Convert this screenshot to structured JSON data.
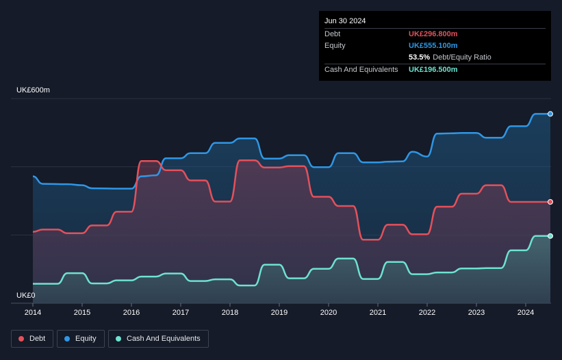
{
  "tooltip": {
    "date": "Jun 30 2024",
    "debt_label": "Debt",
    "debt_value": "UK£296.800m",
    "equity_label": "Equity",
    "equity_value": "UK£555.100m",
    "ratio_value": "53.5%",
    "ratio_label": "Debt/Equity Ratio",
    "cash_label": "Cash And Equivalents",
    "cash_value": "UK£196.500m"
  },
  "legend": {
    "debt": "Debt",
    "equity": "Equity",
    "cash": "Cash And Equivalents"
  },
  "colors": {
    "debt": "#e5505b",
    "equity": "#2f97e6",
    "cash": "#6de3d1",
    "background": "#151b28"
  },
  "chart_data": {
    "type": "area",
    "ylabel_top": "UK£600m",
    "ylabel_bottom": "UK£0",
    "ylim": [
      0,
      600
    ],
    "xlim": [
      2014.0,
      2024.5
    ],
    "x_ticks": [
      "2014",
      "2015",
      "2016",
      "2017",
      "2018",
      "2019",
      "2020",
      "2021",
      "2022",
      "2023",
      "2024"
    ],
    "grid": true,
    "series": [
      {
        "name": "Equity",
        "x": [
          2014.0,
          2014.2,
          2014.7,
          2015.0,
          2015.2,
          2015.8,
          2016.0,
          2016.2,
          2016.5,
          2016.7,
          2017.0,
          2017.2,
          2017.5,
          2017.7,
          2018.0,
          2018.2,
          2018.5,
          2018.7,
          2019.0,
          2019.2,
          2019.5,
          2019.7,
          2020.0,
          2020.2,
          2020.5,
          2020.7,
          2021.0,
          2021.2,
          2021.5,
          2021.7,
          2022.0,
          2022.2,
          2022.5,
          2022.7,
          2023.0,
          2023.2,
          2023.5,
          2023.7,
          2024.0,
          2024.2,
          2024.5
        ],
        "values": [
          372,
          350,
          349,
          346,
          337,
          336,
          336,
          372,
          375,
          425,
          425,
          440,
          440,
          470,
          470,
          483,
          483,
          424,
          424,
          434,
          434,
          399,
          399,
          440,
          440,
          413,
          413,
          415,
          416,
          444,
          430,
          497,
          498,
          499,
          499,
          485,
          485,
          519,
          519,
          555,
          555
        ]
      },
      {
        "name": "Debt",
        "x": [
          2014.0,
          2014.2,
          2014.5,
          2014.7,
          2015.0,
          2015.2,
          2015.5,
          2015.7,
          2016.0,
          2016.2,
          2016.5,
          2016.7,
          2017.0,
          2017.2,
          2017.5,
          2017.7,
          2018.0,
          2018.2,
          2018.5,
          2018.7,
          2019.0,
          2019.2,
          2019.5,
          2019.7,
          2020.0,
          2020.2,
          2020.5,
          2020.7,
          2021.0,
          2021.2,
          2021.5,
          2021.7,
          2022.0,
          2022.2,
          2022.5,
          2022.7,
          2023.0,
          2023.2,
          2023.5,
          2023.7,
          2024.0,
          2024.2,
          2024.5
        ],
        "values": [
          209,
          216,
          216,
          205,
          205,
          228,
          228,
          268,
          268,
          417,
          417,
          390,
          390,
          360,
          360,
          298,
          298,
          419,
          419,
          398,
          398,
          402,
          402,
          312,
          312,
          285,
          285,
          186,
          186,
          230,
          230,
          202,
          202,
          283,
          283,
          321,
          321,
          346,
          346,
          297,
          297,
          297,
          297
        ]
      },
      {
        "name": "Cash And Equivalents",
        "x": [
          2014.0,
          2014.2,
          2014.5,
          2014.7,
          2015.0,
          2015.2,
          2015.5,
          2015.7,
          2016.0,
          2016.2,
          2016.5,
          2016.7,
          2017.0,
          2017.2,
          2017.5,
          2017.7,
          2018.0,
          2018.2,
          2018.5,
          2018.7,
          2019.0,
          2019.2,
          2019.5,
          2019.7,
          2020.0,
          2020.2,
          2020.5,
          2020.7,
          2021.0,
          2021.2,
          2021.5,
          2021.7,
          2022.0,
          2022.2,
          2022.5,
          2022.7,
          2023.0,
          2023.2,
          2023.5,
          2023.7,
          2024.0,
          2024.2,
          2024.5
        ],
        "values": [
          57,
          57,
          57,
          88,
          88,
          58,
          58,
          67,
          67,
          78,
          78,
          87,
          87,
          65,
          65,
          70,
          70,
          52,
          52,
          113,
          113,
          73,
          73,
          101,
          101,
          131,
          131,
          71,
          71,
          121,
          121,
          85,
          85,
          90,
          90,
          102,
          102,
          103,
          103,
          155,
          155,
          197,
          197
        ]
      }
    ]
  }
}
